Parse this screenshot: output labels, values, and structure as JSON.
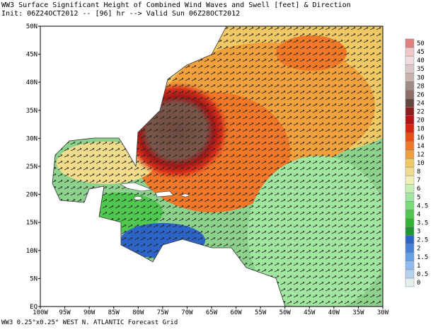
{
  "header": {
    "title": "WW3 Surface Significant Height of Combined Wind Waves and Swell [feet] & Direction",
    "subtitle": "Init: 06Z24OCT2012 -- [96] hr --> Valid Sun 06Z28OCT2012"
  },
  "map": {
    "lat_labels": [
      "50N",
      "45N",
      "40N",
      "35N",
      "30N",
      "25N",
      "20N",
      "15N",
      "10N",
      "5N",
      "EQ"
    ],
    "lon_labels": [
      "100W",
      "95W",
      "90W",
      "85W",
      "80W",
      "75W",
      "70W",
      "65W",
      "60W",
      "55W",
      "50W",
      "45W",
      "40W",
      "35W",
      "30W"
    ]
  },
  "colorbar": {
    "levels": [
      0,
      0.5,
      1,
      1.5,
      2,
      2.5,
      3,
      3.5,
      4,
      4.5,
      5,
      6,
      7,
      8,
      10,
      12,
      14,
      16,
      18,
      20,
      22,
      24,
      26,
      28,
      30,
      35,
      40,
      45,
      50
    ],
    "colors": [
      "#e4f0f0",
      "#b4d2f0",
      "#8cbcf0",
      "#64a0e6",
      "#4682dc",
      "#2d64c8",
      "#1e9632",
      "#32b432",
      "#50c850",
      "#78dc78",
      "#a0e6a0",
      "#c8f0b4",
      "#f0f0b4",
      "#f0dc8c",
      "#f0c864",
      "#f0a03c",
      "#f07828",
      "#e65014",
      "#d22810",
      "#b41414",
      "#8c1e1e",
      "#64463c",
      "#8c6e64",
      "#a08c82",
      "#c8b4aa",
      "#dcc8c8",
      "#f0dcdc",
      "#f0c8c8",
      "#e08080"
    ]
  },
  "footer": "WW3 0.25°x0.25° WEST N. ATLANTIC Forecast Grid"
}
